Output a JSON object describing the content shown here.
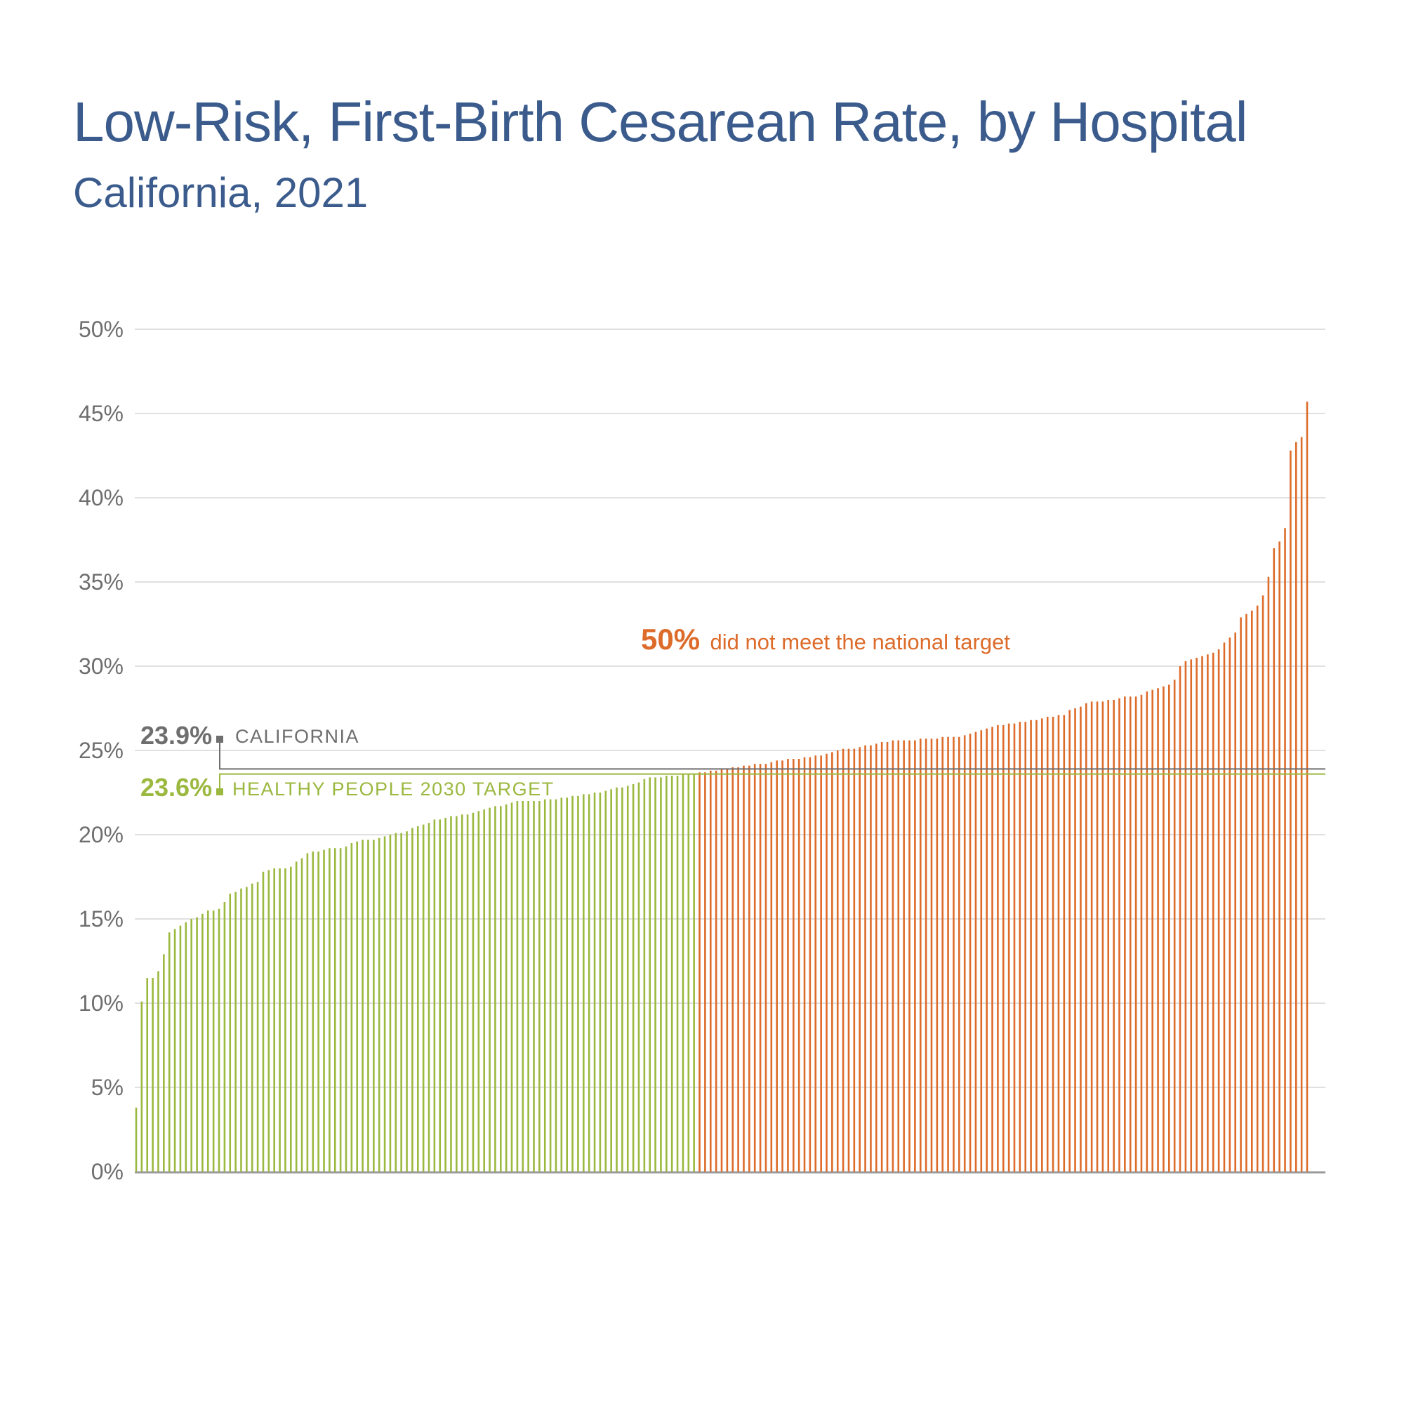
{
  "colors": {
    "title": "#3a5b8c",
    "met_target": "#9bb83f",
    "not_met": "#dd6b2a",
    "california_line": "#6e6e6e",
    "grid": "#d6d6d6",
    "axis": "#9a9a9a"
  },
  "chart_data": {
    "type": "bar",
    "title": "Low-Risk, First-Birth Cesarean Rate, by Hospital",
    "subtitle": "California, 2021",
    "xlabel": "",
    "ylabel": "",
    "ylim": [
      0,
      50
    ],
    "yticks": [
      0,
      5,
      10,
      15,
      20,
      25,
      30,
      35,
      40,
      45,
      50
    ],
    "ytick_labels": [
      "0%",
      "5%",
      "10%",
      "15%",
      "20%",
      "25%",
      "30%",
      "35%",
      "40%",
      "45%",
      "50%"
    ],
    "grid": true,
    "threshold": 23.6,
    "values": [
      3.8,
      10.1,
      11.5,
      11.5,
      11.9,
      12.9,
      14.2,
      14.4,
      14.6,
      14.8,
      15.0,
      15.1,
      15.3,
      15.5,
      15.5,
      15.6,
      16.0,
      16.5,
      16.6,
      16.8,
      16.9,
      17.1,
      17.2,
      17.8,
      17.9,
      18.0,
      18.0,
      18.0,
      18.1,
      18.4,
      18.6,
      18.9,
      19.0,
      19.0,
      19.1,
      19.2,
      19.2,
      19.2,
      19.3,
      19.5,
      19.6,
      19.7,
      19.7,
      19.7,
      19.8,
      19.9,
      20.0,
      20.1,
      20.1,
      20.2,
      20.4,
      20.5,
      20.6,
      20.7,
      20.9,
      20.9,
      21.0,
      21.1,
      21.1,
      21.2,
      21.2,
      21.3,
      21.4,
      21.5,
      21.6,
      21.7,
      21.7,
      21.8,
      21.9,
      22.0,
      22.0,
      22.0,
      22.0,
      22.0,
      22.1,
      22.1,
      22.1,
      22.2,
      22.2,
      22.3,
      22.3,
      22.4,
      22.4,
      22.5,
      22.5,
      22.6,
      22.7,
      22.8,
      22.8,
      22.9,
      23.0,
      23.1,
      23.3,
      23.4,
      23.4,
      23.4,
      23.5,
      23.5,
      23.5,
      23.6,
      23.6,
      23.6,
      23.7,
      23.7,
      23.8,
      23.8,
      23.9,
      23.9,
      24.0,
      24.0,
      24.1,
      24.1,
      24.2,
      24.2,
      24.2,
      24.3,
      24.4,
      24.4,
      24.5,
      24.5,
      24.5,
      24.6,
      24.6,
      24.7,
      24.7,
      24.8,
      24.9,
      25.0,
      25.1,
      25.1,
      25.1,
      25.2,
      25.3,
      25.3,
      25.4,
      25.5,
      25.5,
      25.6,
      25.6,
      25.6,
      25.6,
      25.6,
      25.7,
      25.7,
      25.7,
      25.7,
      25.8,
      25.8,
      25.8,
      25.8,
      25.9,
      26.0,
      26.1,
      26.2,
      26.3,
      26.4,
      26.5,
      26.5,
      26.6,
      26.6,
      26.7,
      26.7,
      26.8,
      26.8,
      26.9,
      27.0,
      27.0,
      27.1,
      27.1,
      27.4,
      27.5,
      27.6,
      27.8,
      27.9,
      27.9,
      27.9,
      28.0,
      28.0,
      28.1,
      28.2,
      28.2,
      28.2,
      28.3,
      28.5,
      28.6,
      28.7,
      28.8,
      28.9,
      29.2,
      30.0,
      30.3,
      30.4,
      30.5,
      30.6,
      30.7,
      30.8,
      31.0,
      31.4,
      31.7,
      32.0,
      32.9,
      33.1,
      33.3,
      33.6,
      34.2,
      35.3,
      37.0,
      37.4,
      38.2,
      42.8,
      43.3,
      43.6,
      45.7
    ]
  },
  "annotations": {
    "california": {
      "value_label": "23.9%",
      "label": "CALIFORNIA",
      "value": 23.9
    },
    "target": {
      "value_label": "23.6%",
      "label": "HEALTHY PEOPLE 2030 TARGET",
      "value": 23.6
    },
    "callout": {
      "highlight": "50%",
      "text": "did not meet the national target"
    }
  }
}
